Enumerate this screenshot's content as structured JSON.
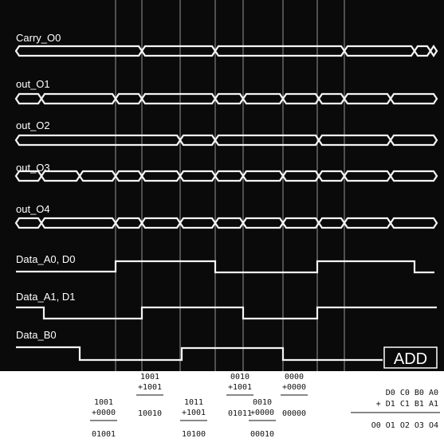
{
  "signals": [
    "Carry_O0",
    "out_O1",
    "out_O2",
    "out_O3",
    "out_O4",
    "Data_A0, D0",
    "Data_A1, D1",
    "Data_B0"
  ],
  "button": "ADD",
  "sums": [
    {
      "a": "1001",
      "b": "+0000",
      "sum": "01001"
    },
    {
      "a": "1001",
      "b": "+1001",
      "sum": "10010"
    },
    {
      "a": "1011",
      "b": "+1001",
      "sum": "10100"
    },
    {
      "a": "0010",
      "b": "+1001",
      "sum": "01011"
    },
    {
      "a": "0010",
      "b": "+0000",
      "sum": "00010"
    },
    {
      "a": "0000",
      "b": "+0000",
      "sum": "00000"
    }
  ],
  "legend": [
    "D0 C0 B0 A0",
    "+ D1 C1 B1 A1",
    "O0 O1 O2 O3 O4"
  ]
}
